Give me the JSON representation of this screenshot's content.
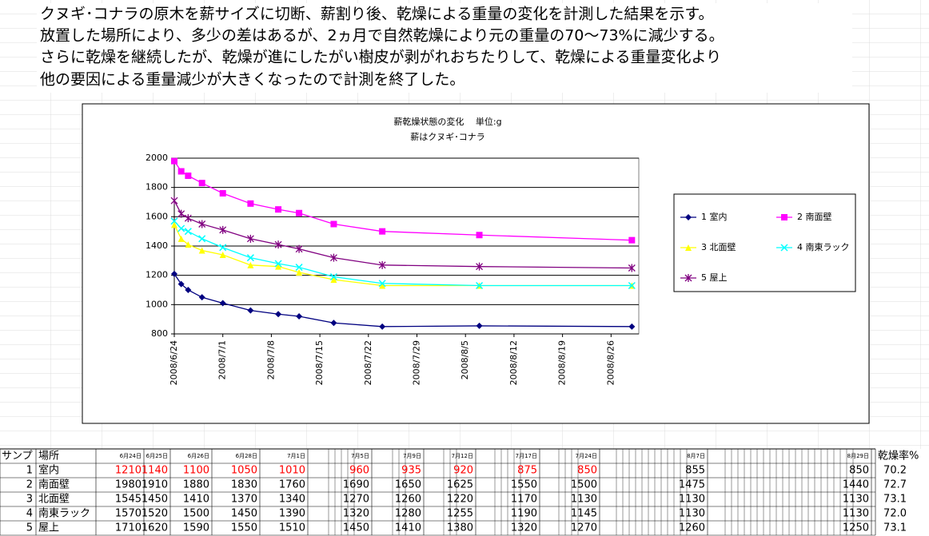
{
  "text": {
    "lines": [
      "クヌギ･コナラの原木を薪サイズに切断、薪割り後、乾燥による重量の変化を計測した結果を示す。",
      "放置した場所により、多少の差はあるが、2ヵ月で自然乾燥により元の重量の70～73%に減少する。",
      "さらに乾燥を継続したが、乾燥が進にしたがい樹皮が剥がれおちたりして、乾燥による重量変化より",
      "他の要因による重量減少が大きくなったので計測を終了した。"
    ]
  },
  "chart_data": {
    "type": "line",
    "title": "薪乾燥状態の変化　 単位:g",
    "subtitle": "薪はクヌギ･コナラ",
    "x": [
      "2008/6/24",
      "2008/6/25",
      "2008/6/26",
      "2008/6/28",
      "2008/7/1",
      "2008/7/5",
      "2008/7/9",
      "2008/7/12",
      "2008/7/17",
      "2008/7/24",
      "2008/8/7",
      "2008/8/29"
    ],
    "xlim": [
      "2008/6/24",
      "2008/8/30"
    ],
    "xticks": [
      "2008/6/24",
      "2008/7/1",
      "2008/7/8",
      "2008/7/15",
      "2008/7/22",
      "2008/7/29",
      "2008/8/5",
      "2008/8/12",
      "2008/8/19",
      "2008/8/26"
    ],
    "ylim": [
      800,
      2000
    ],
    "yticks": [
      800,
      1000,
      1200,
      1400,
      1600,
      1800,
      2000
    ],
    "grid": true,
    "legend": "right",
    "series": [
      {
        "name": "1 室内",
        "color": "#000080",
        "marker": "diamond",
        "values": [
          1210,
          1140,
          1100,
          1050,
          1010,
          960,
          935,
          920,
          875,
          850,
          855,
          850
        ]
      },
      {
        "name": "2 南面壁",
        "color": "#ff00ff",
        "marker": "square",
        "values": [
          1980,
          1910,
          1880,
          1830,
          1760,
          1690,
          1650,
          1625,
          1550,
          1500,
          1475,
          1440
        ]
      },
      {
        "name": "3 北面壁",
        "color": "#ffff00",
        "marker": "triangle",
        "values": [
          1545,
          1450,
          1410,
          1370,
          1340,
          1270,
          1260,
          1220,
          1170,
          1130,
          1130,
          1130
        ]
      },
      {
        "name": "4 南東ラック",
        "color": "#00ffff",
        "marker": "x",
        "values": [
          1570,
          1520,
          1500,
          1450,
          1390,
          1320,
          1280,
          1255,
          1190,
          1145,
          1130,
          1130
        ]
      },
      {
        "name": "5 屋上",
        "color": "#800080",
        "marker": "star",
        "values": [
          1710,
          1620,
          1590,
          1550,
          1510,
          1450,
          1410,
          1380,
          1320,
          1270,
          1260,
          1250
        ]
      }
    ]
  },
  "table": {
    "headers": {
      "sample": "サンプ",
      "place": "場所",
      "dates": [
        "6月24日",
        "6月25日",
        "6月26日",
        "6月28日",
        "7月1日",
        "7月5日",
        "7月9日",
        "7月12日",
        "7月17日",
        "7月24日",
        "8月7日",
        "8月29日"
      ],
      "rate": "乾燥率%"
    },
    "rows": [
      {
        "no": "1",
        "place": "室内",
        "rate": "70.2"
      },
      {
        "no": "2",
        "place": "南面壁",
        "rate": "72.7"
      },
      {
        "no": "3",
        "place": "北面壁",
        "rate": "73.1"
      },
      {
        "no": "4",
        "place": "南東ラック",
        "rate": "72.0"
      },
      {
        "no": "5",
        "place": "屋上",
        "rate": "73.1"
      }
    ]
  }
}
